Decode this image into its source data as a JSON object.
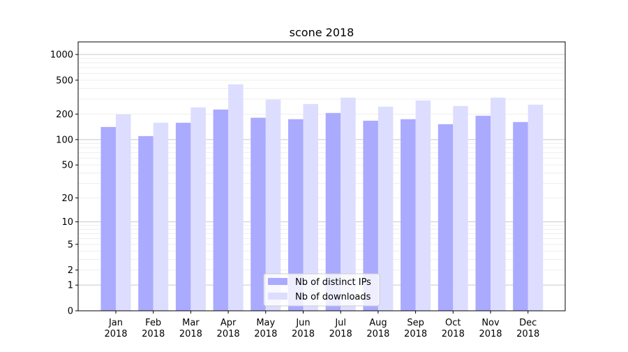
{
  "chart_data": {
    "type": "bar",
    "title": "scone 2018",
    "xlabel": "",
    "ylabel": "",
    "yscale": "symlog",
    "ylim": [
      0,
      1300
    ],
    "yticks": [
      0,
      1,
      2,
      5,
      10,
      20,
      50,
      100,
      200,
      500,
      1000
    ],
    "ytick_labels": [
      "0",
      "1",
      "2",
      "5",
      "10",
      "20",
      "50",
      "100",
      "200",
      "500",
      "1000"
    ],
    "categories": [
      [
        "Jan",
        "2018"
      ],
      [
        "Feb",
        "2018"
      ],
      [
        "Mar",
        "2018"
      ],
      [
        "Apr",
        "2018"
      ],
      [
        "May",
        "2018"
      ],
      [
        "Jun",
        "2018"
      ],
      [
        "Jul",
        "2018"
      ],
      [
        "Aug",
        "2018"
      ],
      [
        "Sep",
        "2018"
      ],
      [
        "Oct",
        "2018"
      ],
      [
        "Nov",
        "2018"
      ],
      [
        "Dec",
        "2018"
      ]
    ],
    "series": [
      {
        "name": "Nb of distinct IPs",
        "color": "#aaaaff",
        "values": [
          141,
          110,
          158,
          226,
          181,
          174,
          206,
          167,
          174,
          152,
          191,
          161
        ]
      },
      {
        "name": "Nb of downloads",
        "color": "#ddddff",
        "values": [
          198,
          158,
          240,
          447,
          296,
          263,
          312,
          244,
          289,
          249,
          312,
          258
        ]
      }
    ],
    "grid": true,
    "legend": "bottom-center"
  }
}
